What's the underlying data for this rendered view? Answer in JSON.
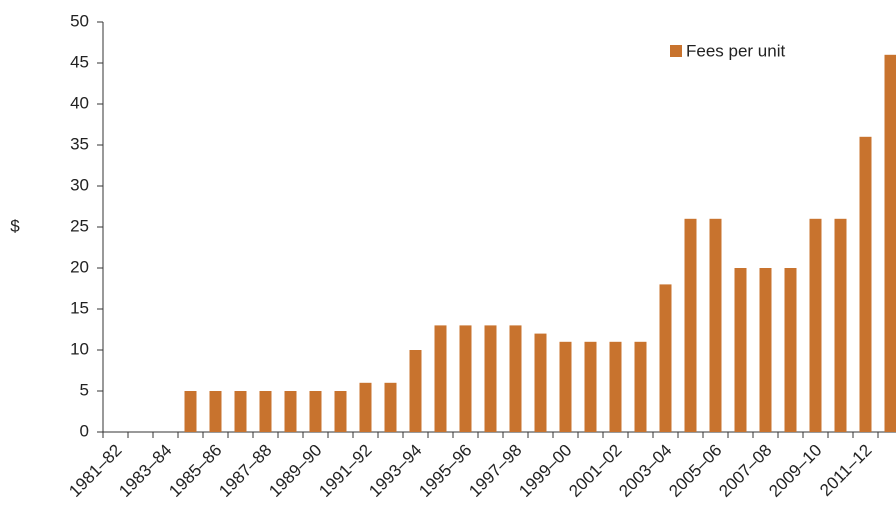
{
  "chart_data": {
    "type": "bar",
    "y_label": "$",
    "categories": [
      "1981–82",
      null,
      "1983–84",
      null,
      "1985–86",
      null,
      "1987–88",
      null,
      "1989–90",
      null,
      "1991–92",
      null,
      "1993–94",
      null,
      "1995–96",
      null,
      "1997–98",
      null,
      "1999–00",
      null,
      "2001–02",
      null,
      "2003–04",
      null,
      "2005–06",
      null,
      "2007–08",
      null,
      "2009–10",
      null,
      "2011–12",
      null
    ],
    "series": [
      {
        "name": "Fees per unit",
        "color": "#c8732e",
        "values": [
          null,
          null,
          null,
          5,
          5,
          5,
          5,
          5,
          5,
          5,
          6,
          6,
          10,
          13,
          13,
          13,
          13,
          12,
          11,
          11,
          11,
          11,
          18,
          26,
          26,
          20,
          20,
          20,
          26,
          26,
          36,
          46
        ]
      }
    ],
    "ylim": [
      0,
      50
    ],
    "yticks": [
      0,
      5,
      10,
      15,
      20,
      25,
      30,
      35,
      40,
      45,
      50
    ],
    "legend": "top-right"
  }
}
